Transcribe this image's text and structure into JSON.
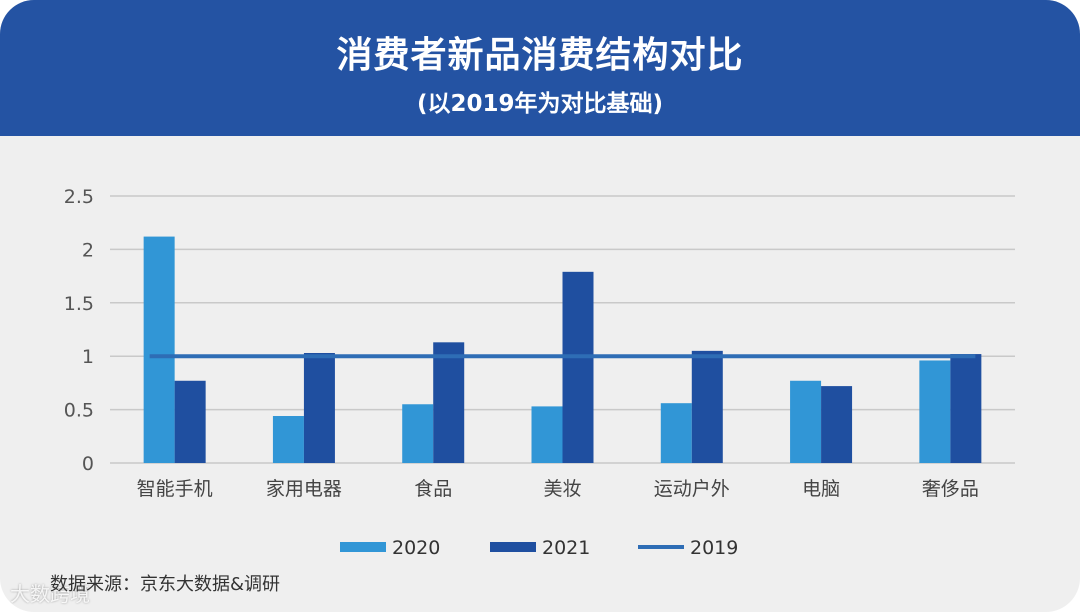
{
  "header": {
    "title": "消费者新品消费结构对比",
    "subtitle": "(以2019年为对比基础)"
  },
  "source_text": "数据来源：京东大数据&调研",
  "watermark_text": "大数跨境",
  "colors": {
    "header_bg": "#2453a3",
    "series_2020": "#3196d6",
    "series_2021": "#1f4fa0",
    "line_2019": "#2e6db5"
  },
  "chart_data": {
    "type": "bar",
    "categories": [
      "智能手机",
      "家用电器",
      "食品",
      "美妆",
      "运动户外",
      "电脑",
      "奢侈品"
    ],
    "series": [
      {
        "name": "2020",
        "type": "bar",
        "values": [
          2.12,
          0.44,
          0.55,
          0.53,
          0.56,
          0.77,
          0.96
        ]
      },
      {
        "name": "2021",
        "type": "bar",
        "values": [
          0.77,
          1.03,
          1.13,
          1.79,
          1.05,
          0.72,
          1.02
        ]
      },
      {
        "name": "2019",
        "type": "line",
        "values": [
          1,
          1,
          1,
          1,
          1,
          1,
          1
        ]
      }
    ],
    "y_ticks": [
      "0",
      "0.5",
      "1",
      "1.5",
      "2",
      "2.5"
    ],
    "ylim": [
      0,
      2.5
    ],
    "grid": true,
    "legend_position": "bottom"
  }
}
